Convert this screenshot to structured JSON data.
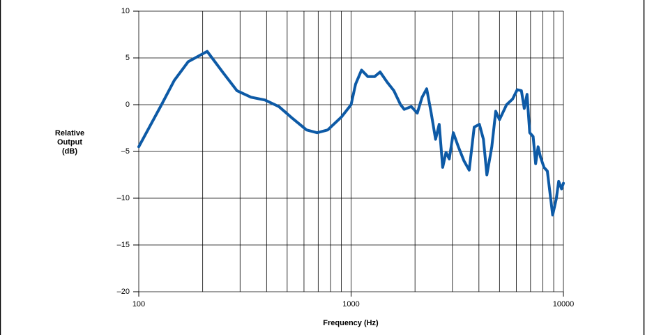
{
  "chart_data": {
    "type": "line",
    "xlabel": "Frequency (Hz)",
    "ylabel": [
      "Relative",
      "Output",
      "(dB)"
    ],
    "xscale": "log",
    "xlim": [
      100,
      10000
    ],
    "xticks": [
      100,
      1000,
      10000
    ],
    "xgrid": [
      200,
      300,
      400,
      500,
      600,
      700,
      800,
      900,
      2000,
      3000,
      4000,
      5000,
      6000,
      7000,
      8000,
      9000
    ],
    "ylim": [
      -20,
      10
    ],
    "yticks": [
      {
        "value": -20,
        "label": "–20"
      },
      {
        "value": -15,
        "label": "–15"
      },
      {
        "value": -10,
        "label": "–10"
      },
      {
        "value": -5,
        "label": "–5"
      },
      0,
      5,
      10
    ],
    "grid": true,
    "series": [
      {
        "color": "#0d5aa6",
        "x": [
          100,
          128,
          147,
          171,
          210,
          250,
          290,
          338,
          393,
          457,
          532,
          617,
          692,
          776,
          902,
          1000,
          1050,
          1120,
          1200,
          1290,
          1370,
          1480,
          1590,
          1710,
          1780,
          1920,
          2050,
          2160,
          2270,
          2380,
          2500,
          2600,
          2700,
          2800,
          2900,
          3030,
          3200,
          3400,
          3600,
          3800,
          4020,
          4200,
          4360,
          4600,
          4800,
          5000,
          5400,
          5760,
          6060,
          6340,
          6540,
          6740,
          6940,
          7200,
          7400,
          7600,
          7800,
          8100,
          8400,
          8900,
          9250,
          9500,
          9800,
          10000
        ],
        "values": [
          -4.5,
          0,
          2.6,
          4.6,
          5.7,
          3.4,
          1.5,
          0.8,
          0.5,
          -0.2,
          -1.5,
          -2.7,
          -3.0,
          -2.7,
          -1.3,
          0,
          2.2,
          3.7,
          3.0,
          3.0,
          3.5,
          2.4,
          1.5,
          0,
          -0.5,
          -0.2,
          -0.9,
          0.8,
          1.7,
          -0.8,
          -3.7,
          -2.1,
          -6.7,
          -5.1,
          -5.8,
          -3.0,
          -4.5,
          -6.0,
          -7.0,
          -2.4,
          -2.1,
          -3.7,
          -7.5,
          -4.5,
          -0.7,
          -1.6,
          0,
          0.6,
          1.6,
          1.5,
          -0.4,
          1.1,
          -3.0,
          -3.4,
          -6.3,
          -4.5,
          -5.6,
          -6.7,
          -7.1,
          -11.8,
          -10.1,
          -8.2,
          -9.0,
          -8.4
        ]
      }
    ]
  }
}
